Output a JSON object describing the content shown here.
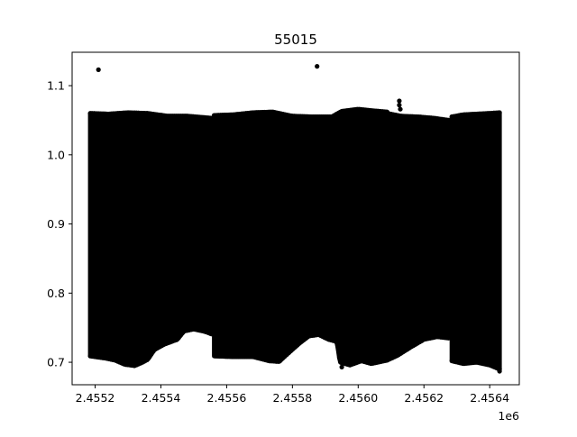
{
  "chart_data": {
    "type": "scatter",
    "title": "55015",
    "xlabel": "",
    "ylabel": "",
    "x_offset_label": "1e6",
    "xlim": [
      2455130,
      2456490
    ],
    "ylim": [
      0.6675,
      1.1483
    ],
    "x_ticks": [
      2455200,
      2455400,
      2455600,
      2455800,
      2456000,
      2456200,
      2456400
    ],
    "x_tick_labels": [
      "2.4552",
      "2.4554",
      "2.4556",
      "2.4558",
      "2.4560",
      "2.4562",
      "2.4564"
    ],
    "y_ticks": [
      0.7,
      0.8,
      0.9,
      1.0,
      1.1
    ],
    "y_tick_labels": [
      "0.7",
      "0.8",
      "0.9",
      "1.0",
      "1.1"
    ],
    "marker_color": "#000000",
    "grid": false,
    "legend": "none",
    "segments": [
      {
        "x_start": 2455185,
        "x_end": 2455554,
        "y_top": [
          [
            2455185,
            1.06
          ],
          [
            2455240,
            1.059
          ],
          [
            2455300,
            1.061
          ],
          [
            2455360,
            1.06
          ],
          [
            2455420,
            1.056
          ],
          [
            2455480,
            1.056
          ],
          [
            2455554,
            1.053
          ]
        ],
        "y_bottom": [
          [
            2455185,
            0.709
          ],
          [
            2455230,
            0.706
          ],
          [
            2455260,
            0.703
          ],
          [
            2455290,
            0.697
          ],
          [
            2455320,
            0.695
          ],
          [
            2455340,
            0.699
          ],
          [
            2455360,
            0.704
          ],
          [
            2455380,
            0.718
          ],
          [
            2455410,
            0.726
          ],
          [
            2455450,
            0.733
          ],
          [
            2455470,
            0.745
          ],
          [
            2455500,
            0.748
          ],
          [
            2455530,
            0.745
          ],
          [
            2455554,
            0.741
          ]
        ]
      },
      {
        "x_start": 2455562,
        "x_end": 2456088,
        "y_top": [
          [
            2455562,
            1.057
          ],
          [
            2455620,
            1.058
          ],
          [
            2455680,
            1.061
          ],
          [
            2455740,
            1.062
          ],
          [
            2455800,
            1.056
          ],
          [
            2455860,
            1.055
          ],
          [
            2455920,
            1.055
          ],
          [
            2455950,
            1.063
          ],
          [
            2456000,
            1.066
          ],
          [
            2456040,
            1.064
          ],
          [
            2456088,
            1.062
          ]
        ],
        "y_bottom": [
          [
            2455562,
            0.709
          ],
          [
            2455620,
            0.708
          ],
          [
            2455680,
            0.708
          ],
          [
            2455730,
            0.702
          ],
          [
            2455760,
            0.701
          ],
          [
            2455780,
            0.71
          ],
          [
            2455820,
            0.727
          ],
          [
            2455850,
            0.738
          ],
          [
            2455880,
            0.74
          ],
          [
            2455910,
            0.733
          ],
          [
            2455935,
            0.73
          ],
          [
            2455945,
            0.7
          ],
          [
            2455975,
            0.696
          ],
          [
            2456010,
            0.702
          ],
          [
            2456040,
            0.698
          ],
          [
            2456060,
            0.7
          ],
          [
            2456088,
            0.703
          ]
        ]
      },
      {
        "x_start": 2456088,
        "x_end": 2456275,
        "y_top": [
          [
            2456088,
            1.06
          ],
          [
            2456130,
            1.056
          ],
          [
            2456180,
            1.055
          ],
          [
            2456230,
            1.053
          ],
          [
            2456275,
            1.05
          ]
        ],
        "y_bottom": [
          [
            2456088,
            0.703
          ],
          [
            2456120,
            0.71
          ],
          [
            2456160,
            0.722
          ],
          [
            2456200,
            0.733
          ],
          [
            2456240,
            0.737
          ],
          [
            2456275,
            0.735
          ]
        ]
      },
      {
        "x_start": 2456285,
        "x_end": 2456430,
        "y_top": [
          [
            2456285,
            1.055
          ],
          [
            2456320,
            1.058
          ],
          [
            2456360,
            1.059
          ],
          [
            2456400,
            1.06
          ],
          [
            2456430,
            1.061
          ]
        ],
        "y_bottom": [
          [
            2456285,
            0.702
          ],
          [
            2456320,
            0.698
          ],
          [
            2456360,
            0.7
          ],
          [
            2456400,
            0.696
          ],
          [
            2456430,
            0.69
          ]
        ]
      }
    ],
    "outliers": [
      {
        "x": 2455210,
        "y": 1.123
      },
      {
        "x": 2455875,
        "y": 1.128
      },
      {
        "x": 2456125,
        "y": 1.078
      },
      {
        "x": 2456125,
        "y": 1.072
      },
      {
        "x": 2456128,
        "y": 1.066
      },
      {
        "x": 2455950,
        "y": 0.693
      },
      {
        "x": 2456430,
        "y": 0.687
      }
    ]
  }
}
